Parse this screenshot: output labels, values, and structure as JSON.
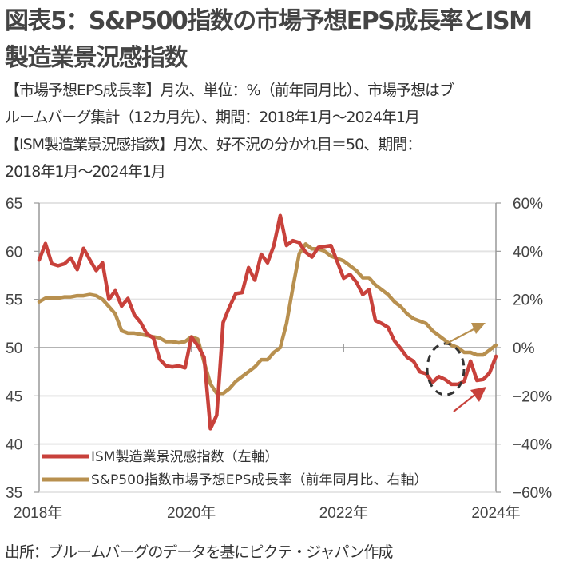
{
  "header": {
    "title_line1": "図表5：S&P500指数の市場予想EPS成長率とISM",
    "title_line2": "製造業景況感指数"
  },
  "description": [
    "【市場予想EPS成長率】月次、単位：%（前年同月比）、市場予想はブ",
    "ルームバーグ集計（12カ月先）、期間：2018年1月～2024年1月",
    "【ISM製造業景況感指数】月次、好不況の分かれ目＝50、期間：",
    "2018年1月～2024年1月"
  ],
  "source": "出所：ブルームバーグのデータを基にピクテ・ジャパン作成",
  "colors": {
    "ism": "#c8413b",
    "eps": "#b8904f",
    "grid": "#e3e3e3",
    "axis": "#999999",
    "circle": "#333333"
  },
  "chart_data": {
    "type": "line",
    "title": "図表5：S&P500指数の市場予想EPS成長率とISM製造業景況感指数",
    "x_range": [
      "2018-01",
      "2024-01"
    ],
    "x_ticks": [
      "2018年",
      "2020年",
      "2022年",
      "2024年"
    ],
    "left_axis": {
      "label": "ISM製造業景況感指数",
      "ylim": [
        35,
        65
      ],
      "ticks": [
        "65",
        "60",
        "55",
        "50",
        "45",
        "40",
        "35"
      ]
    },
    "right_axis": {
      "label": "EPS成長率(%)",
      "ylim": [
        -60,
        60
      ],
      "ticks": [
        "60%",
        "40%",
        "20%",
        "0%",
        "−20%",
        "−40%",
        "−60%"
      ]
    },
    "grid": true,
    "legend_position": "bottom-left",
    "series": [
      {
        "name": "ISM製造業景況感指数（左軸）",
        "axis": "left",
        "start": "2018-01",
        "frequency": "monthly",
        "values": [
          59.1,
          60.8,
          58.7,
          58.5,
          58.7,
          59.3,
          58.1,
          60.3,
          59.1,
          58.0,
          58.8,
          55.0,
          55.9,
          54.3,
          55.1,
          53.4,
          52.6,
          51.4,
          51.0,
          48.8,
          48.1,
          48.0,
          48.1,
          47.9,
          51.1,
          50.2,
          49.0,
          41.6,
          43.0,
          52.6,
          54.2,
          55.6,
          55.7,
          58.3,
          57.0,
          59.7,
          58.8,
          60.6,
          63.7,
          60.6,
          61.1,
          60.9,
          59.9,
          59.4,
          60.4,
          60.5,
          60.6,
          58.9,
          57.2,
          57.6,
          56.8,
          55.5,
          56.0,
          52.8,
          52.5,
          52.1,
          50.7,
          49.9,
          49.0,
          48.6,
          47.5,
          47.3,
          46.4,
          47.0,
          46.7,
          46.2,
          46.2,
          46.5,
          48.6,
          46.6,
          46.7,
          47.4,
          49.1
        ]
      },
      {
        "name": "S&P500指数市場予想EPS成長率（前年同月比、右軸）",
        "axis": "right",
        "start": "2018-01",
        "frequency": "monthly",
        "values": [
          19,
          20.5,
          20.5,
          20.5,
          21,
          21,
          21.5,
          21.5,
          22,
          21.5,
          20,
          17,
          14,
          7,
          6,
          6,
          5.5,
          5,
          4.5,
          4,
          2.5,
          2.5,
          2,
          2.5,
          4.5,
          3.5,
          -6,
          -15,
          -19,
          -19,
          -17,
          -14,
          -12,
          -10,
          -8,
          -5,
          -5,
          -2,
          0,
          10,
          25,
          39,
          43,
          41,
          41,
          40,
          38,
          37,
          36,
          34,
          32,
          29,
          29,
          26,
          24,
          22,
          19,
          17,
          14,
          12,
          11,
          10,
          7,
          5,
          3,
          1,
          0,
          -2,
          -2,
          -3,
          -3,
          -1,
          1
        ]
      }
    ],
    "annotations": [
      {
        "type": "dashed-circle",
        "around": "2023-05 trough"
      },
      {
        "type": "arrow",
        "series": "EPS",
        "direction": "up-right",
        "near": "2023-08"
      },
      {
        "type": "arrow",
        "series": "ISM",
        "direction": "up-right",
        "near": "2023-10"
      }
    ]
  }
}
